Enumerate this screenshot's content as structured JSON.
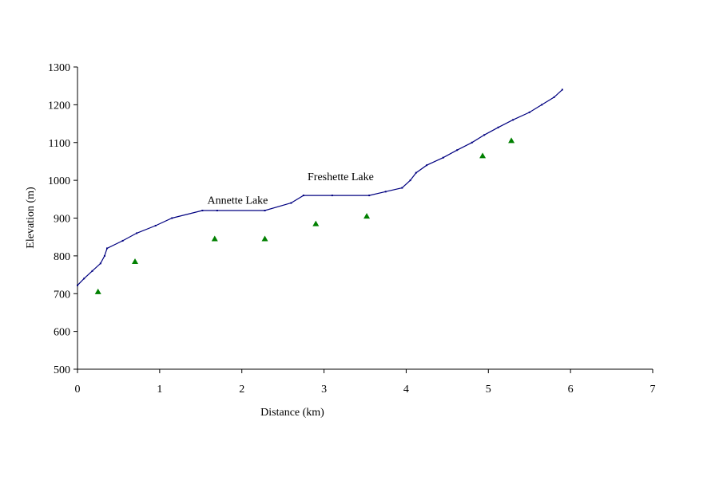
{
  "chart_data": {
    "type": "scatter",
    "xlabel": "Distance (km)",
    "ylabel": "Elevation (m)",
    "xlim": [
      0,
      7
    ],
    "ylim": [
      500,
      1300
    ],
    "x_ticks": [
      0,
      1,
      2,
      3,
      4,
      5,
      6,
      7
    ],
    "y_ticks": [
      500,
      600,
      700,
      800,
      900,
      1000,
      1100,
      1200,
      1300
    ],
    "grid": false,
    "legend": "none",
    "series": [
      {
        "style": "line",
        "color": "#000080",
        "points": [
          [
            0.0,
            722
          ],
          [
            0.08,
            740
          ],
          [
            0.18,
            760
          ],
          [
            0.28,
            780
          ],
          [
            0.33,
            800
          ],
          [
            0.36,
            820
          ],
          [
            0.55,
            840
          ],
          [
            0.72,
            860
          ],
          [
            0.95,
            880
          ],
          [
            1.15,
            900
          ],
          [
            1.52,
            920
          ],
          [
            1.7,
            920
          ],
          [
            2.28,
            920
          ],
          [
            2.6,
            940
          ],
          [
            2.75,
            960
          ],
          [
            3.1,
            960
          ],
          [
            3.55,
            960
          ],
          [
            3.75,
            970
          ],
          [
            3.95,
            980
          ],
          [
            4.05,
            1000
          ],
          [
            4.12,
            1020
          ],
          [
            4.25,
            1040
          ],
          [
            4.45,
            1060
          ],
          [
            4.62,
            1080
          ],
          [
            4.8,
            1100
          ],
          [
            4.95,
            1120
          ],
          [
            5.12,
            1140
          ],
          [
            5.3,
            1160
          ],
          [
            5.5,
            1180
          ],
          [
            5.65,
            1200
          ],
          [
            5.8,
            1220
          ],
          [
            5.9,
            1240
          ]
        ]
      },
      {
        "style": "triangle-markers",
        "color": "#008000",
        "points": [
          [
            0.25,
            705
          ],
          [
            0.7,
            785
          ],
          [
            1.67,
            845
          ],
          [
            2.28,
            845
          ],
          [
            2.9,
            885
          ],
          [
            3.52,
            905
          ],
          [
            4.93,
            1065
          ],
          [
            5.28,
            1105
          ]
        ]
      }
    ],
    "annotations": [
      {
        "text": "Annette Lake",
        "x": 1.58,
        "y": 938
      },
      {
        "text": "Freshette  Lake",
        "x": 2.8,
        "y": 1000
      }
    ]
  }
}
